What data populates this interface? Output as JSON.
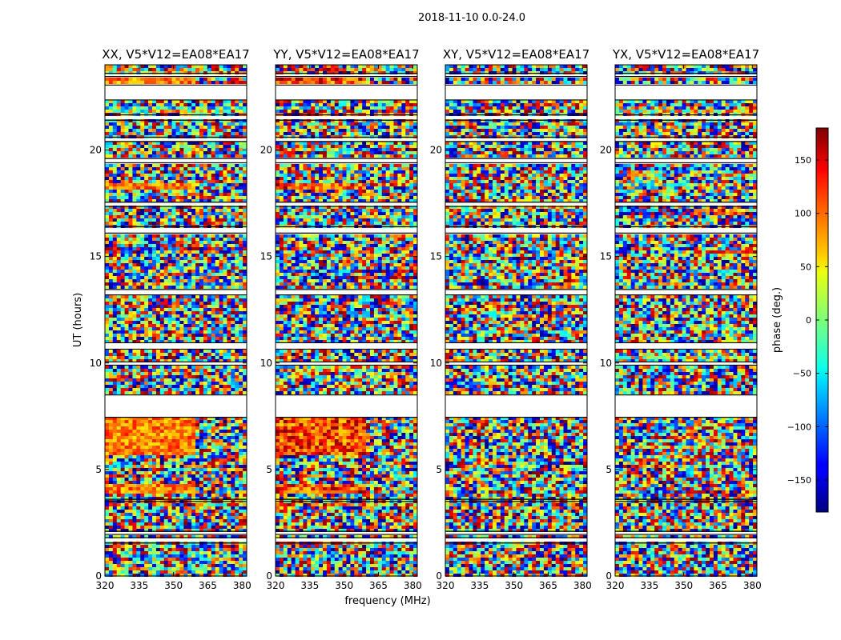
{
  "figure_title": "2018-11-10 0.0-24.0",
  "chart_data": {
    "type": "heatmap",
    "suptitle": "2018-11-10 0.0-24.0",
    "xlabel": "frequency (MHz)",
    "ylabel": "UT (hours)",
    "xlim": [
      320,
      382
    ],
    "ylim": [
      0,
      24
    ],
    "x_ticks": [
      320,
      335,
      350,
      365,
      380
    ],
    "y_ticks": [
      0,
      5,
      10,
      15,
      20
    ],
    "panels": [
      {
        "title": "XX, V5*V12=EA08*EA17",
        "pol": "XX"
      },
      {
        "title": "YY, V5*V12=EA08*EA17",
        "pol": "YY"
      },
      {
        "title": "XY, V5*V12=EA08*EA17",
        "pol": "XY"
      },
      {
        "title": "YX, V5*V12=EA08*EA17",
        "pol": "YX"
      }
    ],
    "gaps_hours": [
      [
        1.55,
        1.8
      ],
      [
        1.95,
        2.1
      ],
      [
        3.5,
        3.6
      ],
      [
        7.45,
        8.5
      ],
      [
        9.9,
        10.05
      ],
      [
        10.65,
        10.95
      ],
      [
        13.2,
        13.45
      ],
      [
        16.1,
        16.4
      ],
      [
        17.35,
        17.55
      ],
      [
        19.4,
        19.6
      ],
      [
        20.4,
        20.6
      ],
      [
        21.4,
        21.65
      ],
      [
        22.35,
        23.05
      ],
      [
        23.45,
        23.6
      ]
    ],
    "colorbar": {
      "label": "phase (deg.)",
      "range": [
        -180,
        180
      ],
      "ticks": [
        150,
        100,
        50,
        0,
        -50,
        -100,
        -150
      ],
      "tick_labels": [
        "150",
        "100",
        "50",
        "0",
        "−50",
        "−100",
        "−150"
      ],
      "colormap": "jet"
    }
  }
}
